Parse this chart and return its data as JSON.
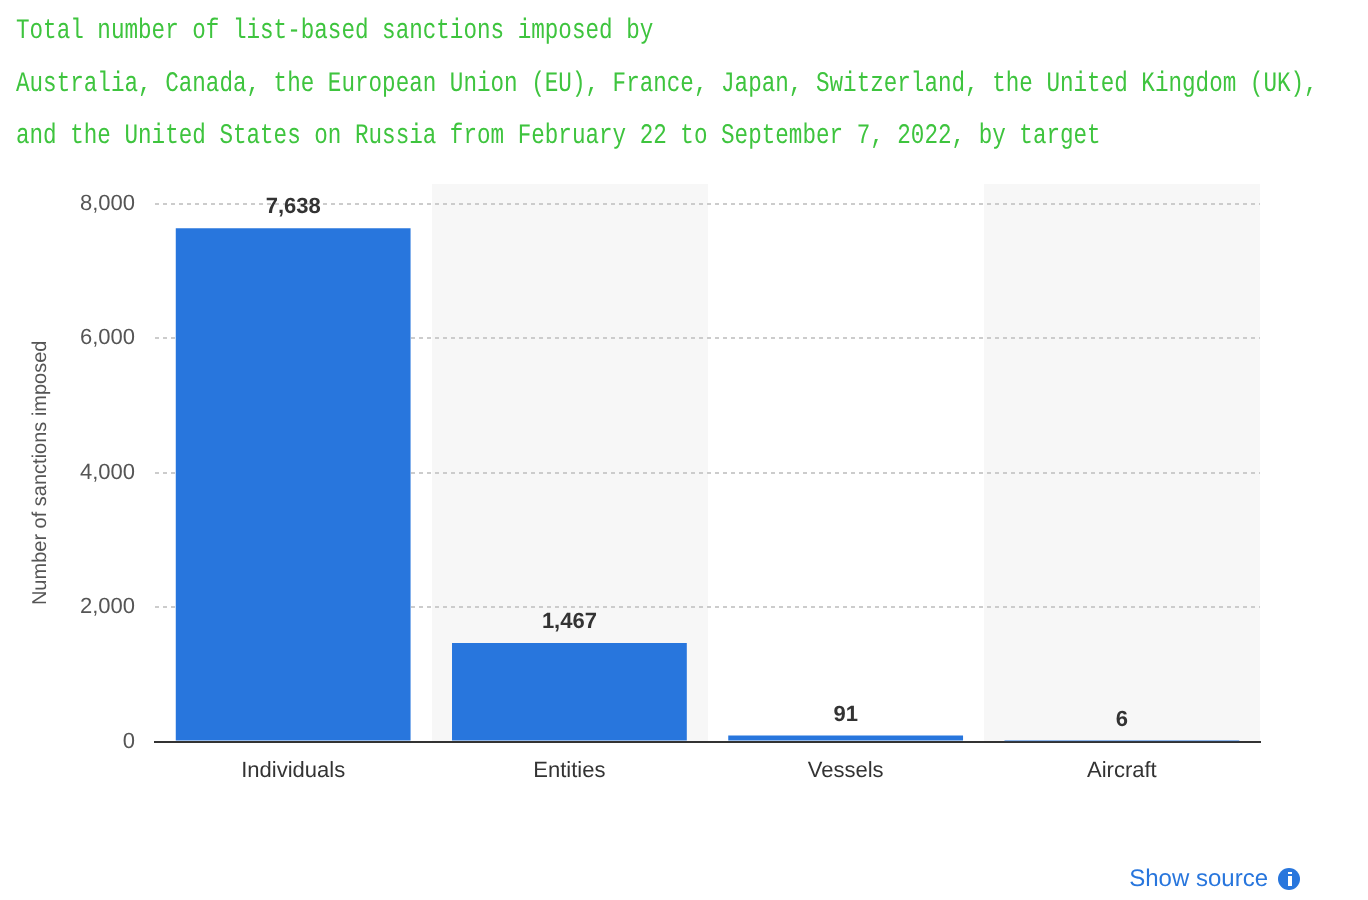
{
  "chart_data": {
    "type": "bar",
    "title": "Total number of list-based sanctions imposed by\nAustralia, Canada, the European Union (EU), France, Japan, Switzerland, the United Kingdom (UK),\nand the United States on Russia from February 22 to September 7, 2022, by target",
    "ylabel": "Number of sanctions imposed",
    "categories": [
      "Individuals",
      "Entities",
      "Vessels",
      "Aircraft"
    ],
    "values": [
      7638,
      1467,
      91,
      6
    ],
    "color": "#2876dd",
    "ylim": [
      0,
      8000
    ],
    "yticks": [
      {
        "value": 0,
        "label": "0"
      },
      {
        "value": 2000,
        "label": "2,000"
      },
      {
        "value": 4000,
        "label": "4,000"
      },
      {
        "value": 6000,
        "label": "6,000"
      },
      {
        "value": 8000,
        "label": "8,000"
      }
    ],
    "grid": "y",
    "value_labels": [
      "7,638",
      "1,467",
      "91",
      "6"
    ],
    "annotations": [
      "Show source"
    ]
  }
}
